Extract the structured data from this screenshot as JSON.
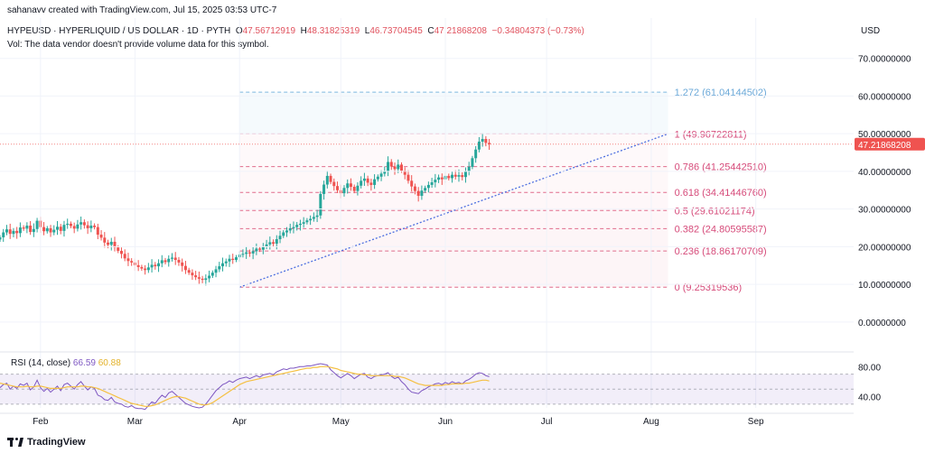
{
  "header": {
    "attribution": "sahanavv created with TradingView.com, Jul 15, 2025 03:53 UTC-7",
    "symbol": "HYPEUSD · HYPERLIQUID / US DOLLAR · 1D · PYTH",
    "open_label": "O",
    "open": "47.56712919",
    "high_label": "H",
    "high": "48.31825319",
    "low_label": "L",
    "low": "46.73704545",
    "close_label": "C",
    "close": "47.21868208",
    "change": "−0.34804373 (−0.73%)",
    "vol_note": "Vol: The data vendor doesn't provide volume data for this symbol.",
    "currency": "USD"
  },
  "rsi_legend": {
    "label": "RSI (14, close)",
    "rsi": "66.59",
    "ma": "60.88"
  },
  "footer": {
    "brand": "TradingView"
  },
  "colors": {
    "up": "#26a69a",
    "down": "#ef5350",
    "fib_line": "#e06c8c",
    "fib_text": "#d64b7a",
    "fib_top_line": "#7fb8e0",
    "fib_top_text": "#6aa8d8",
    "rsi": "#7e57c2",
    "rsi_ma": "#f5c042",
    "price_tag": "#ef5350",
    "trendline": "#4c6fe0"
  },
  "chart_data": [
    {
      "type": "candlestick",
      "title": "HYPEUSD · HYPERLIQUID / US DOLLAR · 1D · PYTH",
      "ylim": [
        -6.5,
        74
      ],
      "yticks": [
        0,
        10,
        20,
        30,
        40,
        50,
        60,
        70
      ],
      "ytick_labels": [
        "0.00000000",
        "10.00000000",
        "20.00000000",
        "30.00000000",
        "40.00000000",
        "50.00000000",
        "60.00000000",
        "70.00000000"
      ],
      "xlim": [
        "2025-01-20",
        "2025-09-30"
      ],
      "xticks": [
        {
          "date": "2025-02-01",
          "label": "Feb"
        },
        {
          "date": "2025-03-01",
          "label": "Mar"
        },
        {
          "date": "2025-04-01",
          "label": "Apr"
        },
        {
          "date": "2025-05-01",
          "label": "May"
        },
        {
          "date": "2025-06-01",
          "label": "Jun"
        },
        {
          "date": "2025-07-01",
          "label": "Jul"
        },
        {
          "date": "2025-08-01",
          "label": "Aug"
        },
        {
          "date": "2025-09-01",
          "label": "Sep"
        }
      ],
      "last_price": 47.21868208,
      "last_price_label": "47.21868208",
      "start_date": "2025-01-20",
      "closes": [
        22.5,
        23.8,
        24.6,
        23.4,
        24.2,
        23.6,
        25.1,
        24.8,
        25.6,
        23.9,
        24.7,
        26.9,
        25.2,
        24.1,
        24.9,
        23.8,
        24.5,
        25.3,
        24.2,
        25.8,
        26.1,
        25.5,
        24.8,
        25.9,
        26.5,
        25.7,
        24.9,
        25.6,
        25.2,
        23.2,
        22.4,
        21.1,
        20.5,
        21.3,
        19.8,
        18.9,
        18.1,
        16.9,
        16.2,
        15.8,
        15.1,
        14.6,
        14.2,
        13.8,
        14.5,
        15.2,
        14.8,
        15.6,
        16.4,
        15.9,
        16.8,
        17.1,
        16.5,
        15.8,
        14.9,
        13.8,
        13.1,
        12.4,
        11.9,
        11.5,
        11.2,
        11.6,
        12.3,
        13.1,
        14.0,
        14.8,
        15.6,
        16.1,
        16.8,
        16.5,
        17.2,
        17.9,
        18.1,
        18.5,
        18.2,
        18.8,
        19.5,
        19.2,
        20.1,
        20.6,
        21.2,
        20.8,
        22.0,
        22.9,
        23.8,
        24.3,
        24.9,
        25.2,
        25.8,
        26.1,
        26.5,
        27.0,
        27.4,
        27.9,
        28.3,
        34.0,
        36.5,
        38.8,
        37.2,
        36.1,
        35.0,
        34.2,
        35.6,
        36.8,
        35.9,
        34.8,
        36.2,
        37.5,
        38.1,
        37.0,
        36.4,
        37.9,
        38.6,
        39.4,
        40.1,
        42.5,
        41.3,
        40.6,
        41.8,
        40.2,
        39.1,
        37.5,
        36.0,
        34.8,
        33.5,
        34.9,
        35.6,
        36.4,
        37.1,
        37.8,
        38.4,
        37.9,
        38.8,
        38.2,
        39.1,
        38.6,
        39.0,
        38.5,
        40.0,
        41.2,
        43.5,
        45.8,
        47.9,
        48.6,
        47.56,
        47.22
      ],
      "fib": {
        "start_date": "2025-04-01",
        "end_date": "2025-08-06",
        "levels": [
          {
            "label": "1.272 (61.04144502)",
            "value": 61.04144502
          },
          {
            "label": "1 (49.96722811)",
            "value": 49.96722811
          },
          {
            "label": "0.786 (41.25442510)",
            "value": 41.2544251
          },
          {
            "label": "0.618 (34.41446760)",
            "value": 34.4144676
          },
          {
            "label": "0.5 (29.61021174)",
            "value": 29.61021174
          },
          {
            "label": "0.382 (24.80595587)",
            "value": 24.80595587
          },
          {
            "label": "0.236 (18.86170709)",
            "value": 18.86170709
          },
          {
            "label": "0 (9.25319536)",
            "value": 9.25319536
          }
        ]
      },
      "trendline": {
        "start_date": "2025-04-01",
        "start_value": 9.25,
        "end_date": "2025-08-06",
        "end_value": 49.97
      }
    },
    {
      "type": "line",
      "title": "RSI (14, close)",
      "ylim": [
        25,
        90
      ],
      "yticks": [
        40,
        80
      ],
      "ytick_labels": [
        "40.00",
        "80.00"
      ],
      "band": [
        30,
        70
      ],
      "series": [
        {
          "name": "RSI",
          "values": [
            52,
            56,
            58,
            50,
            54,
            51,
            57,
            55,
            58,
            49,
            53,
            62,
            52,
            47,
            51,
            46,
            50,
            54,
            48,
            56,
            58,
            54,
            50,
            56,
            60,
            54,
            49,
            53,
            51,
            42,
            40,
            36,
            35,
            39,
            33,
            31,
            30,
            27,
            26,
            28,
            25,
            24,
            24,
            23,
            28,
            33,
            31,
            37,
            42,
            39,
            45,
            47,
            43,
            39,
            35,
            31,
            29,
            27,
            26,
            25,
            26,
            30,
            36,
            42,
            48,
            52,
            56,
            58,
            61,
            59,
            62,
            64,
            65,
            66,
            64,
            66,
            68,
            66,
            69,
            70,
            71,
            69,
            73,
            75,
            77,
            76,
            78,
            78,
            79,
            80,
            80,
            81,
            81,
            82,
            83,
            84,
            83,
            82,
            76,
            72,
            68,
            65,
            68,
            71,
            68,
            64,
            67,
            70,
            71,
            66,
            64,
            67,
            68,
            69,
            70,
            72,
            67,
            64,
            66,
            60,
            56,
            50,
            46,
            45,
            44,
            48,
            50,
            53,
            55,
            57,
            58,
            56,
            59,
            57,
            60,
            58,
            59,
            57,
            61,
            63,
            66,
            70,
            72,
            71,
            68,
            66.59
          ]
        },
        {
          "name": "MA",
          "values": [
            58,
            57,
            56,
            55,
            54,
            53,
            53,
            53,
            54,
            53,
            53,
            54,
            54,
            53,
            52,
            51,
            51,
            51,
            51,
            52,
            53,
            53,
            53,
            53,
            54,
            54,
            53,
            53,
            52,
            51,
            49,
            47,
            45,
            43,
            41,
            39,
            37,
            35,
            33,
            31,
            30,
            29,
            28,
            27,
            27,
            28,
            29,
            31,
            33,
            35,
            37,
            39,
            40,
            40,
            39,
            38,
            36,
            34,
            32,
            30,
            29,
            29,
            30,
            32,
            35,
            38,
            41,
            44,
            47,
            50,
            53,
            56,
            58,
            60,
            61,
            62,
            63,
            64,
            65,
            66,
            67,
            68,
            69,
            70,
            71,
            72,
            73,
            74,
            75,
            76,
            77,
            78,
            78,
            79,
            79,
            80,
            80,
            80,
            79,
            78,
            77,
            75,
            74,
            73,
            72,
            71,
            70,
            70,
            69,
            69,
            68,
            68,
            68,
            68,
            68,
            68,
            68,
            67,
            67,
            66,
            65,
            63,
            61,
            59,
            57,
            56,
            55,
            55,
            55,
            55,
            55,
            55,
            56,
            56,
            57,
            57,
            57,
            57,
            58,
            58,
            59,
            60,
            61,
            62,
            62,
            60.88
          ]
        }
      ]
    }
  ]
}
